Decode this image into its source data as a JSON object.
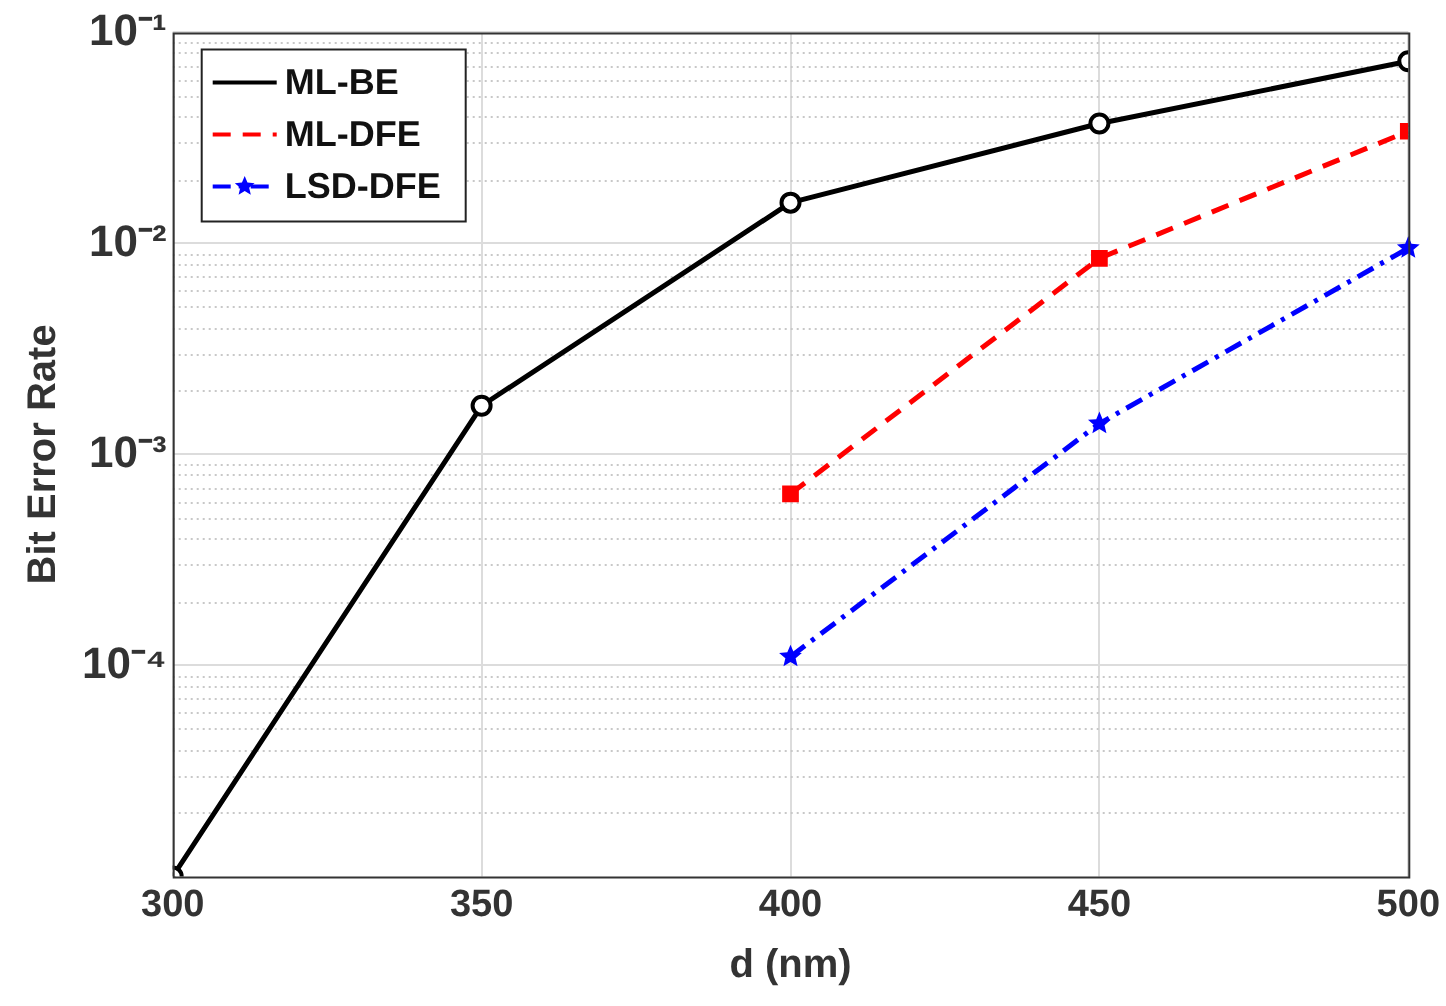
{
  "chart_data": {
    "type": "line",
    "xlabel": "d (nm)",
    "ylabel": "Bit Error Rate",
    "x": [
      300,
      350,
      400,
      450,
      500
    ],
    "series": [
      {
        "name": "ML-BE",
        "color": "#000000",
        "values": [
          1e-05,
          0.0017,
          0.0156,
          0.037,
          0.073
        ],
        "marker": "circle",
        "line_style": "solid"
      },
      {
        "name": "ML-DFE",
        "color": "#ff0000",
        "values": [
          null,
          null,
          0.00065,
          0.0085,
          0.034
        ],
        "marker": "square",
        "line_style": "dashed"
      },
      {
        "name": "LSD-DFE",
        "color": "#0000ff",
        "values": [
          null,
          null,
          0.00011,
          0.0014,
          0.0095
        ],
        "marker": "star",
        "line_style": "dashdot"
      }
    ],
    "log": "y",
    "xlim": [
      300,
      500
    ],
    "xticks": [
      300,
      350,
      400,
      450,
      500
    ],
    "ylim": [
      1e-05,
      0.1
    ],
    "yticks": [
      {
        "value": 0.0001,
        "label": "10⁻⁴"
      },
      {
        "value": 0.001,
        "label": "10⁻³"
      },
      {
        "value": 0.01,
        "label": "10⁻²"
      },
      {
        "value": 0.1,
        "label": "10⁻¹"
      }
    ],
    "grid": true,
    "legend": "top left"
  }
}
